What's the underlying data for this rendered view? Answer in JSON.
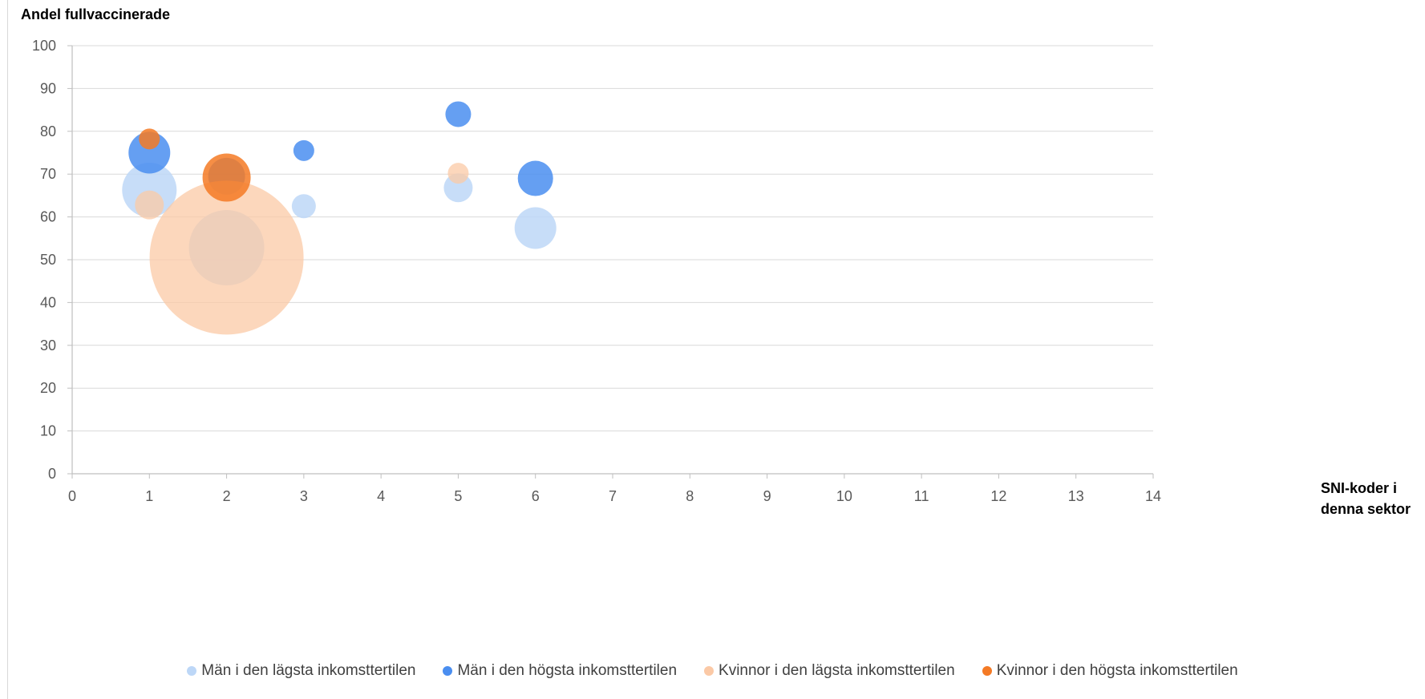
{
  "chart_data": {
    "type": "scatter",
    "ylabel": "Andel fullvaccinerade",
    "xlabel": "SNI-koder i denna sektor",
    "xlim": [
      0,
      14
    ],
    "ylim": [
      0,
      100
    ],
    "xticks": [
      0,
      1,
      2,
      3,
      4,
      5,
      6,
      7,
      8,
      9,
      10,
      11,
      12,
      13,
      14
    ],
    "yticks": [
      0,
      10,
      20,
      30,
      40,
      50,
      60,
      70,
      80,
      90,
      100
    ],
    "grid": "horizontal",
    "legend_position": "bottom",
    "series": [
      {
        "name": "Män i den lägsta inkomsttertilen",
        "color": "#bdd7f7",
        "opacity": 0.85,
        "points": [
          {
            "x": 1,
            "y": 66.3,
            "size": 34
          },
          {
            "x": 2,
            "y": 52.8,
            "size": 47
          },
          {
            "x": 3,
            "y": 62.5,
            "size": 15
          },
          {
            "x": 5,
            "y": 66.8,
            "size": 18
          },
          {
            "x": 6,
            "y": 57.4,
            "size": 26
          }
        ]
      },
      {
        "name": "Män i den högsta inkomsttertilen",
        "color": "#4a8ef0",
        "opacity": 0.85,
        "points": [
          {
            "x": 1,
            "y": 75,
            "size": 26
          },
          {
            "x": 2,
            "y": 69.5,
            "size": 23
          },
          {
            "x": 3,
            "y": 75.5,
            "size": 13
          },
          {
            "x": 5,
            "y": 84,
            "size": 16
          },
          {
            "x": 6,
            "y": 69,
            "size": 22
          }
        ]
      },
      {
        "name": "Kvinnor i den lägsta inkomsttertilen",
        "color": "#fbc9a6",
        "opacity": 0.75,
        "points": [
          {
            "x": 1,
            "y": 62.8,
            "size": 18
          },
          {
            "x": 2,
            "y": 50.5,
            "size": 96
          },
          {
            "x": 5,
            "y": 70.2,
            "size": 13
          }
        ]
      },
      {
        "name": "Kvinnor i den högsta inkomsttertilen",
        "color": "#f47a25",
        "opacity": 0.85,
        "points": [
          {
            "x": 1,
            "y": 78.2,
            "size": 13
          },
          {
            "x": 2,
            "y": 69.2,
            "size": 30
          }
        ]
      }
    ]
  }
}
